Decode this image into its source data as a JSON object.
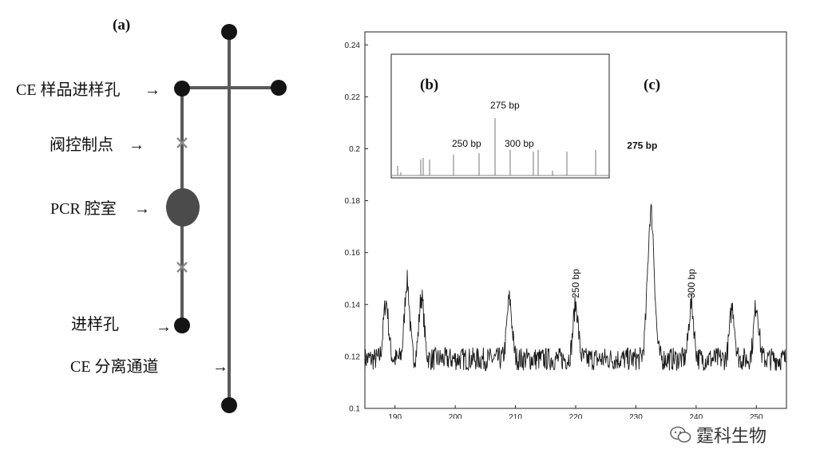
{
  "panels": {
    "a": "(a)",
    "b": "(b)",
    "c": "(c)"
  },
  "diagram": {
    "labels": {
      "ce_sample_inlet": "CE 样品进样孔",
      "valve_point": "阀控制点",
      "pcr_chamber": "PCR 腔室",
      "inlet": "进样孔",
      "ce_channel": "CE 分离通道"
    },
    "arrow": "→"
  },
  "watermark": {
    "text": "霆科生物"
  },
  "chart_data": {
    "type": "line",
    "main": {
      "x_ticks": [
        190,
        200,
        210,
        220,
        230,
        240,
        250
      ],
      "y_ticks": [
        "0.1",
        "0.12",
        "0.14",
        "0.16",
        "0.18",
        "0.2",
        "0.22",
        "0.24"
      ],
      "xlim": [
        185,
        255
      ],
      "ylim": [
        0.1,
        0.245
      ],
      "baseline": 0.119,
      "peaks": [
        {
          "x": 188.5,
          "y": 0.141
        },
        {
          "x": 192.0,
          "y": 0.149
        },
        {
          "x": 194.4,
          "y": 0.143
        },
        {
          "x": 209.0,
          "y": 0.142
        },
        {
          "x": 220.0,
          "y": 0.14,
          "label": "250 bp"
        },
        {
          "x": 232.5,
          "y": 0.176,
          "label": "275 bp"
        },
        {
          "x": 239.2,
          "y": 0.14,
          "label": "300 bp"
        },
        {
          "x": 246.0,
          "y": 0.139
        },
        {
          "x": 250.0,
          "y": 0.14
        }
      ]
    },
    "inset": {
      "label_250": "250 bp",
      "label_275": "275 bp",
      "label_300": "300 bp"
    }
  }
}
